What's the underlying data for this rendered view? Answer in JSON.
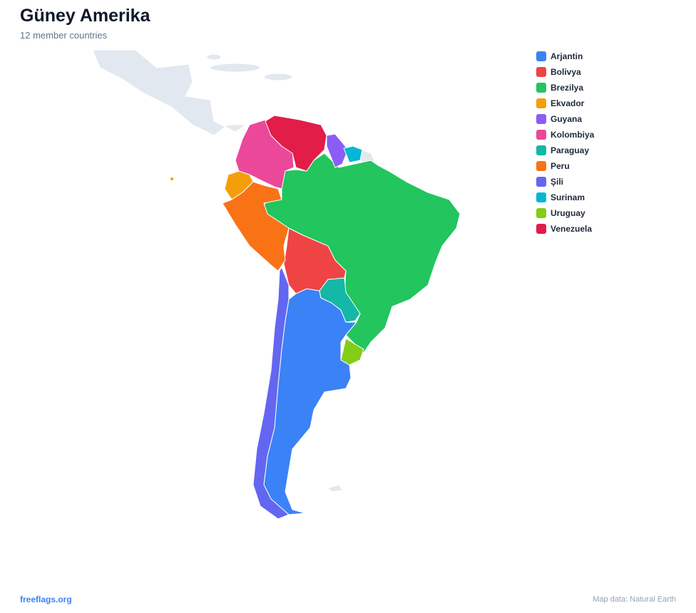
{
  "header": {
    "title": "Güney Amerika",
    "subtitle": "12 member countries"
  },
  "legend": [
    {
      "name": "Arjantin",
      "color": "#3b82f6"
    },
    {
      "name": "Bolivya",
      "color": "#ef4444"
    },
    {
      "name": "Brezilya",
      "color": "#22c55e"
    },
    {
      "name": "Ekvador",
      "color": "#f59e0b"
    },
    {
      "name": "Guyana",
      "color": "#8b5cf6"
    },
    {
      "name": "Kolombiya",
      "color": "#ec4899"
    },
    {
      "name": "Paraguay",
      "color": "#14b8a6"
    },
    {
      "name": "Peru",
      "color": "#f97316"
    },
    {
      "name": "Şili",
      "color": "#6366f1"
    },
    {
      "name": "Surinam",
      "color": "#06b6d4"
    },
    {
      "name": "Uruguay",
      "color": "#84cc16"
    },
    {
      "name": "Venezuela",
      "color": "#e11d48"
    }
  ],
  "footer": {
    "site": "freeflags.org",
    "source": "Map data: Natural Earth"
  }
}
